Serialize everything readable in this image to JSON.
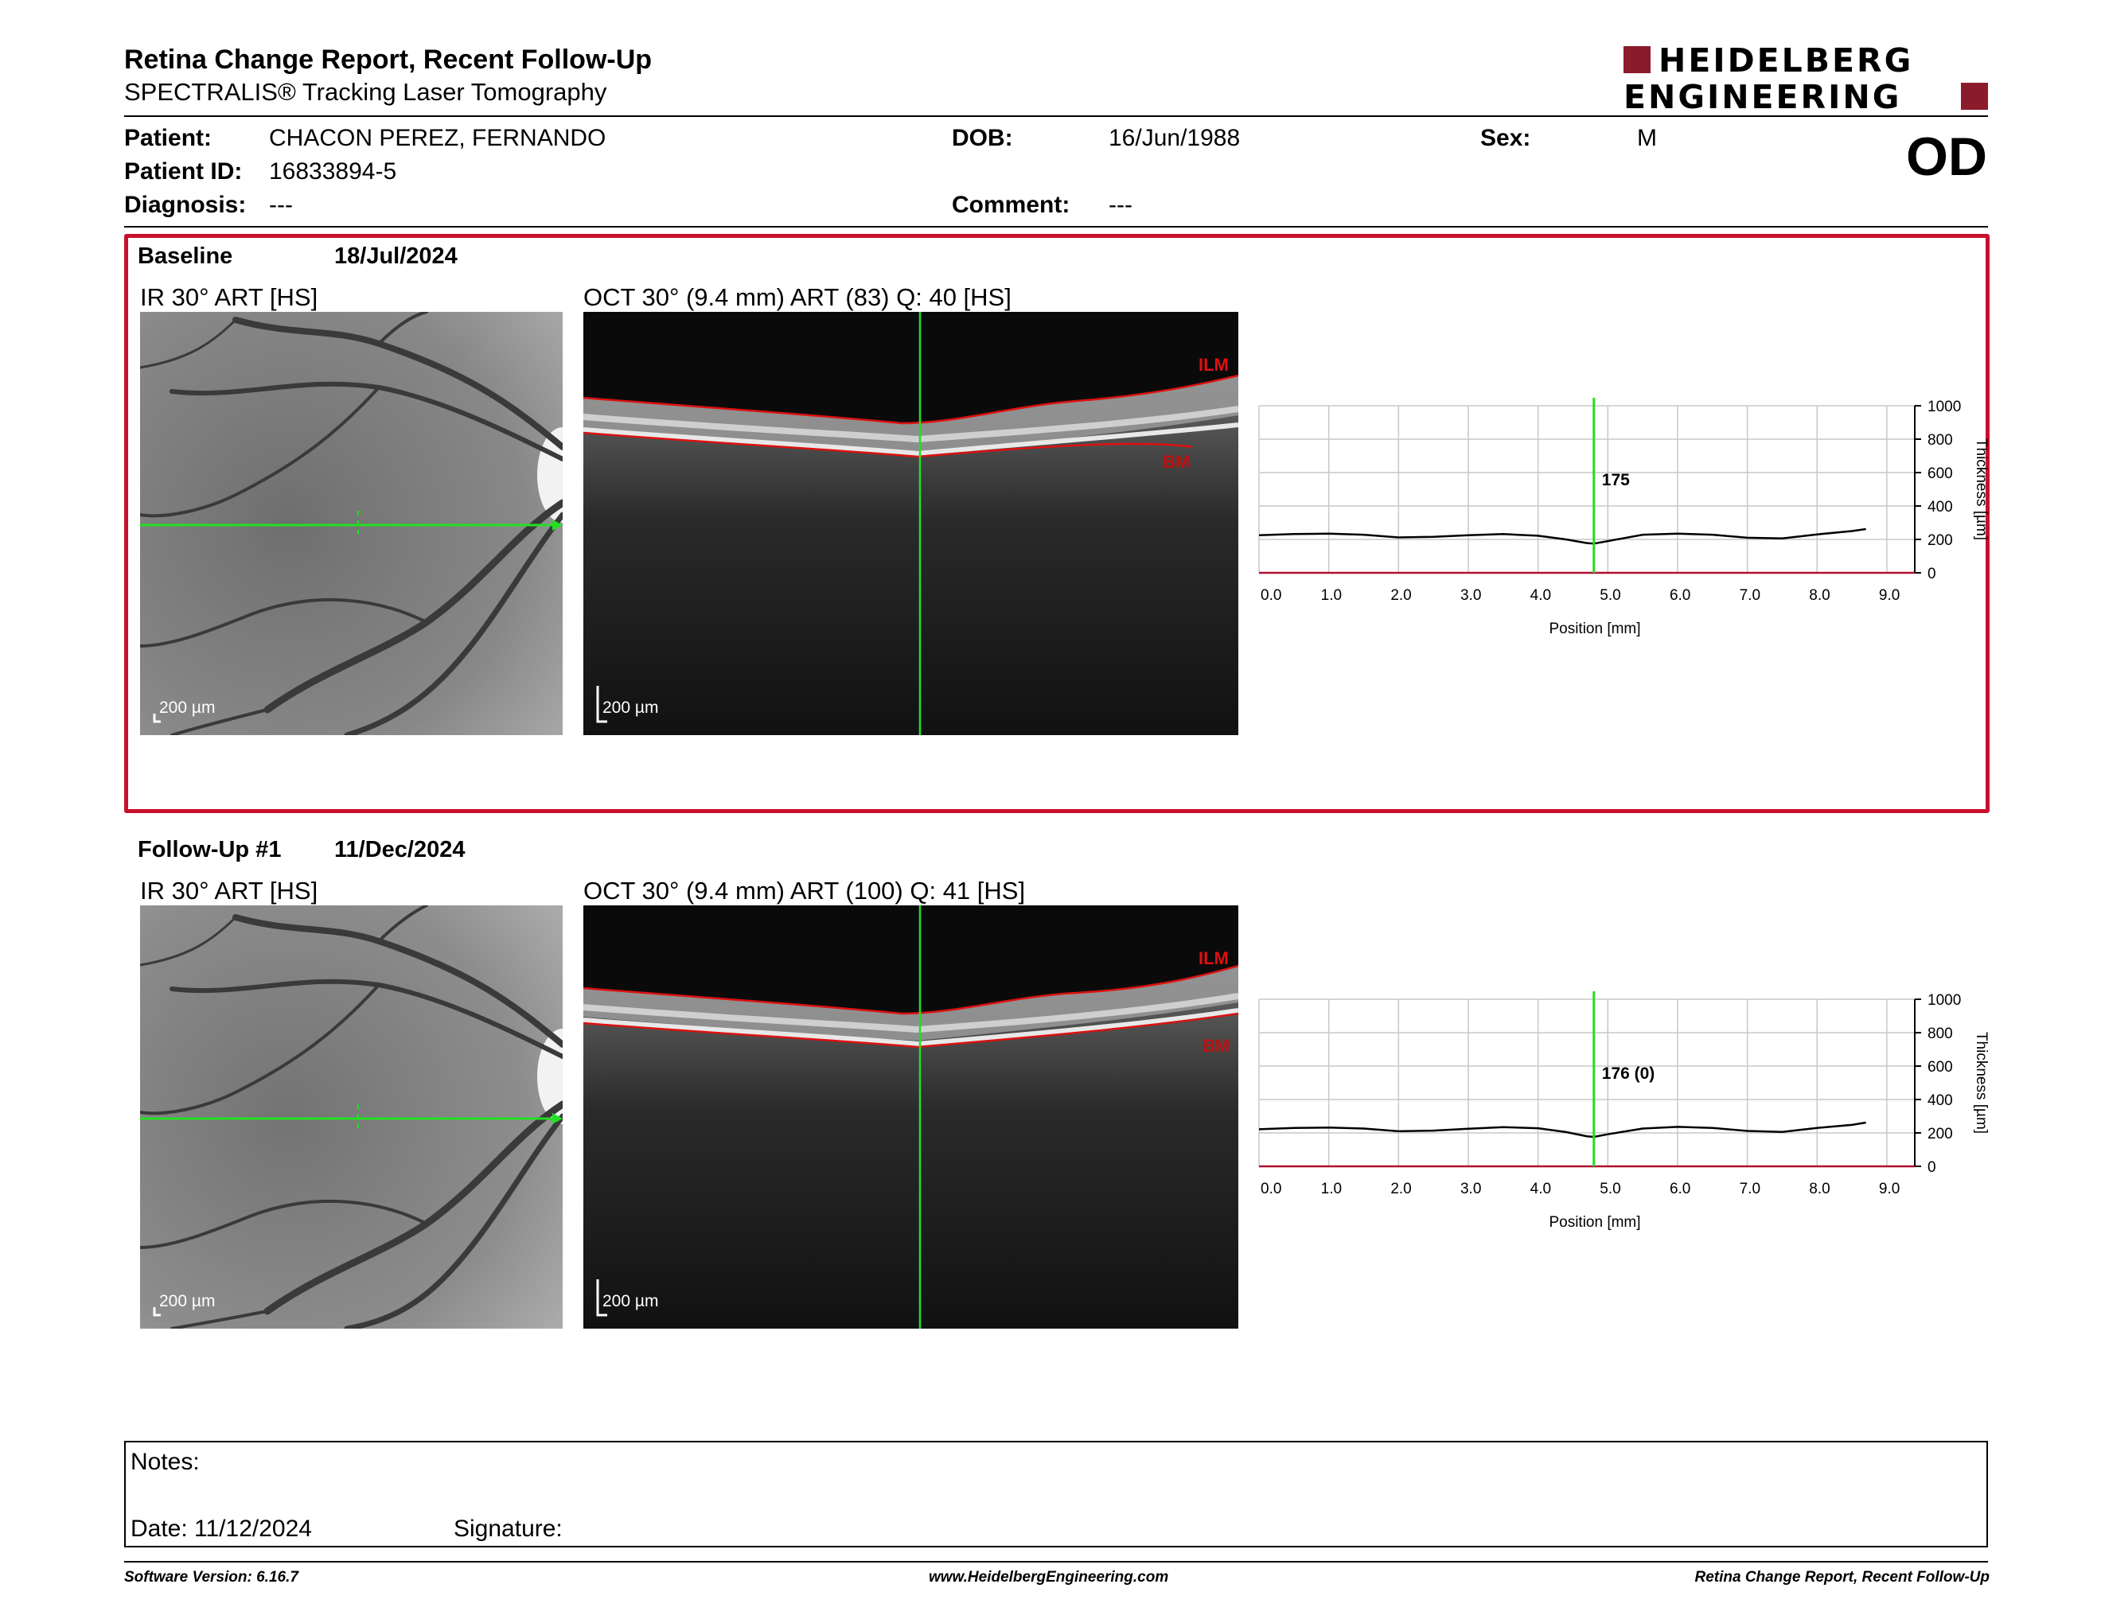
{
  "header": {
    "title": "Retina Change Report, Recent Follow-Up",
    "subtitle": "SPECTRALIS® Tracking Laser Tomography",
    "logo_line1": "HEIDELBERG",
    "logo_line2": "ENGINEERING",
    "brand_color": "#8b1a2b"
  },
  "patient": {
    "patient_label": "Patient:",
    "patient_name": "CHACON PEREZ, FERNANDO",
    "dob_label": "DOB:",
    "dob": "16/Jun/1988",
    "sex_label": "Sex:",
    "sex": "M",
    "id_label": "Patient ID:",
    "id": "16833894-5",
    "diagnosis_label": "Diagnosis:",
    "diagnosis": "---",
    "comment_label": "Comment:",
    "comment": "---",
    "eye": "OD"
  },
  "baseline": {
    "label": "Baseline",
    "date": "18/Jul/2024",
    "ir_title": "IR 30° ART [HS]",
    "oct_title": "OCT 30° (9.4 mm) ART (83) Q: 40 [HS]",
    "scale_label": "200 µm",
    "ilm_label": "ILM",
    "bm_label": "BM",
    "thickness_value": "175"
  },
  "followup": {
    "label": "Follow-Up #1",
    "date": "11/Dec/2024",
    "ir_title": "IR 30° ART [HS]",
    "oct_title": "OCT 30° (9.4 mm) ART (100) Q: 41 [HS]",
    "scale_label": "200 µm",
    "ilm_label": "ILM",
    "bm_label": "BM",
    "thickness_value": "176 (0)"
  },
  "chart_data": [
    {
      "type": "line",
      "xlabel": "Position [mm]",
      "ylabel": "Thickness [µm]",
      "xlim": [
        0,
        9.4
      ],
      "ylim": [
        0,
        1000
      ],
      "x_ticks": [
        "0.0",
        "1.0",
        "2.0",
        "3.0",
        "4.0",
        "5.0",
        "6.0",
        "7.0",
        "8.0",
        "9.0"
      ],
      "y_ticks": [
        "0",
        "200",
        "400",
        "600",
        "800",
        "1000"
      ],
      "cursor_x": 4.8,
      "cursor_label": "175",
      "x": [
        0.0,
        0.5,
        1.0,
        1.5,
        2.0,
        2.5,
        3.0,
        3.5,
        4.0,
        4.4,
        4.7,
        4.8,
        5.0,
        5.5,
        6.0,
        6.5,
        7.0,
        7.5,
        8.0,
        8.5,
        8.7
      ],
      "y": [
        225,
        232,
        235,
        228,
        212,
        215,
        225,
        232,
        222,
        200,
        178,
        175,
        190,
        228,
        235,
        228,
        210,
        206,
        230,
        250,
        262
      ]
    },
    {
      "type": "line",
      "xlabel": "Position [mm]",
      "ylabel": "Thickness [µm]",
      "xlim": [
        0,
        9.4
      ],
      "ylim": [
        0,
        1000
      ],
      "x_ticks": [
        "0.0",
        "1.0",
        "2.0",
        "3.0",
        "4.0",
        "5.0",
        "6.0",
        "7.0",
        "8.0",
        "9.0"
      ],
      "y_ticks": [
        "0",
        "200",
        "400",
        "600",
        "800",
        "1000"
      ],
      "cursor_x": 4.8,
      "cursor_label": "176 (0)",
      "x": [
        0.0,
        0.5,
        1.0,
        1.5,
        2.0,
        2.5,
        3.0,
        3.5,
        4.0,
        4.4,
        4.7,
        4.8,
        5.0,
        5.5,
        6.0,
        6.5,
        7.0,
        7.5,
        8.0,
        8.5,
        8.7
      ],
      "y": [
        222,
        230,
        232,
        226,
        210,
        214,
        225,
        235,
        228,
        205,
        180,
        176,
        192,
        226,
        236,
        230,
        212,
        206,
        230,
        248,
        262
      ]
    }
  ],
  "notes": {
    "notes_label": "Notes:",
    "date_label": "Date: 11/12/2024",
    "signature_label": "Signature:"
  },
  "footer": {
    "software": "Software Version: 6.16.7",
    "website": "www.HeidelbergEngineering.com",
    "report_name": "Retina Change Report, Recent Follow-Up"
  }
}
